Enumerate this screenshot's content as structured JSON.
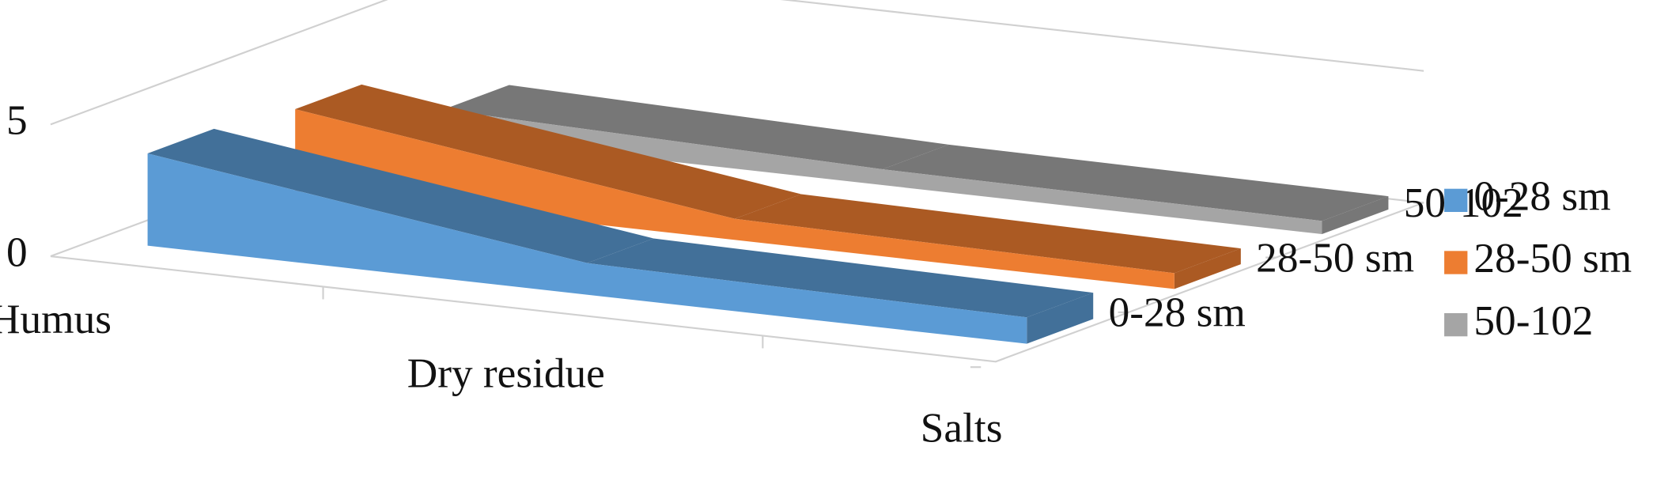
{
  "chart_data": {
    "type": "area",
    "categories": [
      "Humus",
      "Dry residue",
      "Salts"
    ],
    "series": [
      {
        "name": "0-28 sm",
        "color": "#5b9bd5",
        "values": [
          3.5,
          1.2,
          1.0
        ]
      },
      {
        "name": "28-50 sm",
        "color": "#ed7d31",
        "values": [
          3.1,
          0.8,
          0.6
        ]
      },
      {
        "name": "50-102",
        "color": "#a5a5a5",
        "values": [
          1.0,
          0.6,
          0.5
        ]
      }
    ],
    "ylim": [
      0,
      5
    ],
    "yticks": [
      0,
      5
    ],
    "grid": true,
    "legend": "right"
  }
}
